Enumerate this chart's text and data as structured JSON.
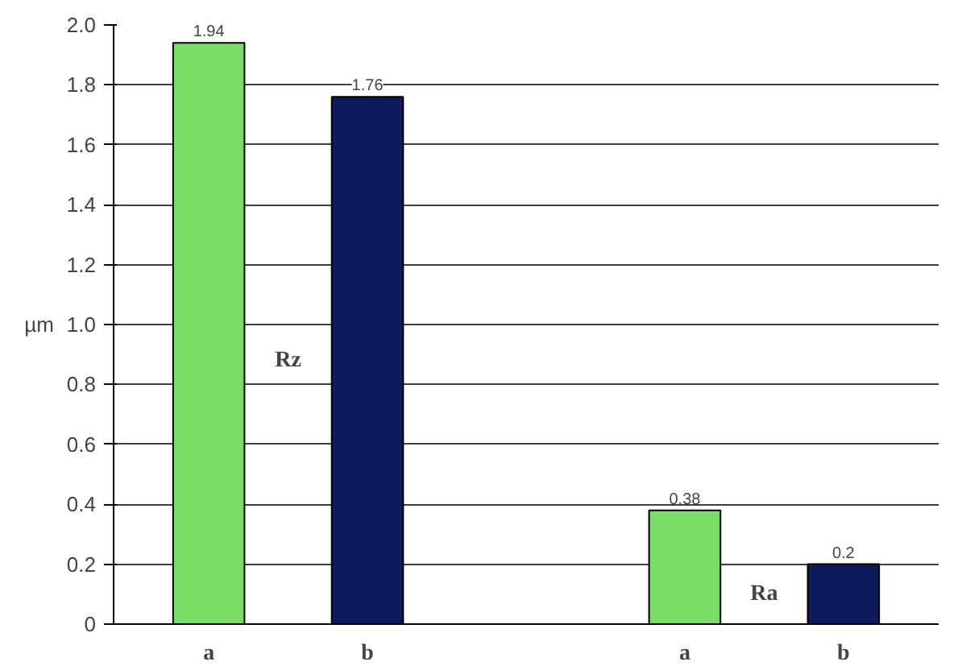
{
  "chart_data": {
    "type": "bar",
    "ylabel": "µm",
    "categories": [
      "a",
      "b",
      null,
      "a",
      "b"
    ],
    "values": [
      1.94,
      1.76,
      null,
      0.38,
      0.2
    ],
    "colors": [
      "#77dd66",
      "#0d1a5e",
      null,
      "#77dd66",
      "#0d1a5e"
    ],
    "data_labels": true,
    "ylim": [
      0,
      2.0
    ],
    "yticks": [
      0,
      0.2,
      0.4,
      0.6,
      0.8,
      {
        "value": 1.0,
        "label": "1.0"
      },
      1.2,
      1.4,
      1.6,
      1.8,
      {
        "value": 2.0,
        "label": "2.0"
      }
    ],
    "grid": "y",
    "annotations": [
      "Rz",
      "Ra"
    ]
  }
}
